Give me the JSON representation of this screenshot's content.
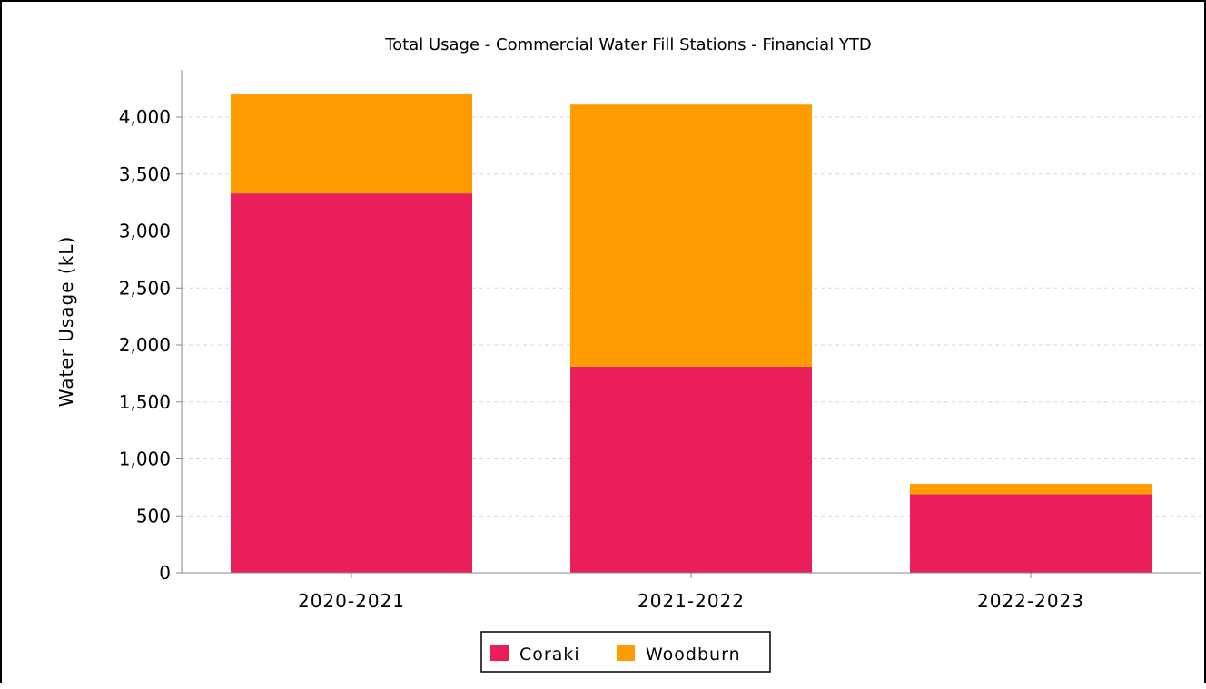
{
  "chart_data": {
    "type": "bar",
    "stacked": true,
    "title": "Total Usage - Commercial Water Fill Stations - Financial YTD",
    "xlabel": "",
    "ylabel": "Water Usage (kL)",
    "categories": [
      "2020-2021",
      "2021-2022",
      "2022-2023"
    ],
    "series": [
      {
        "name": "Coraki",
        "color": "#e91e5a",
        "values": [
          3330,
          1810,
          690
        ]
      },
      {
        "name": "Woodburn",
        "color": "#ff9c00",
        "values": [
          870,
          2300,
          90
        ]
      }
    ],
    "ylim": [
      0,
      4000
    ],
    "yticks": [
      0,
      500,
      1000,
      1500,
      2000,
      2500,
      3000,
      3500,
      4000
    ],
    "ytick_labels": [
      "0",
      "500",
      "1,000",
      "1,500",
      "2,000",
      "2,500",
      "3,000",
      "3,500",
      "4,000"
    ],
    "grid": true,
    "legend_position": "bottom"
  }
}
